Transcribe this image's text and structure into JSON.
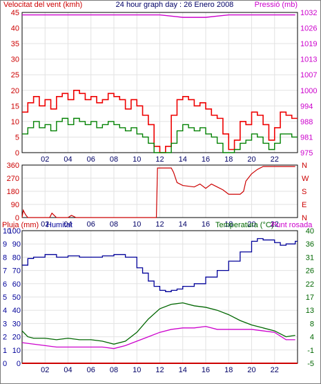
{
  "title": "24 hour graph day : 26 Enero 2008",
  "colors": {
    "wind": "#cc0000",
    "gust": "#ee0000",
    "avgwind": "#008000",
    "dir": "#cc0000",
    "pressure": "#cc00cc",
    "humidity": "#000099",
    "temperature": "#006600",
    "dewpoint": "#cc00cc",
    "rain": "#cc0000",
    "axis": "#000000",
    "grid": "#e2e2e2",
    "left_text": "#cc0000",
    "right_text": "#cc00cc",
    "hum_text": "#000099",
    "bottom_text": "#000066",
    "temp_text": "#006600",
    "dirlabel_text": "#cc0000"
  },
  "x_ticks": [
    "02",
    "04",
    "06",
    "08",
    "10",
    "12",
    "14",
    "16",
    "18",
    "20",
    "22"
  ],
  "chart_data": [
    {
      "type": "line",
      "labels": {
        "left": "Velocitat del vent (kmh)",
        "right": "Pressió (mb)"
      },
      "x_range": [
        0,
        24
      ],
      "left_ticks": [
        "0",
        "5",
        "10",
        "15",
        "20",
        "25",
        "30",
        "35",
        "40",
        "45"
      ],
      "ylim_left": [
        0,
        45
      ],
      "right_ticks": [
        "975",
        "981",
        "988",
        "994",
        "1000",
        "1007",
        "1013",
        "1019",
        "1026",
        "1032"
      ],
      "ylim_right": [
        975,
        1032
      ],
      "series": [
        {
          "key": "gust",
          "axis": "left",
          "x": [
            0,
            0.5,
            1,
            1.5,
            2,
            2.5,
            3,
            3.5,
            4,
            4.5,
            5,
            5.5,
            6,
            6.5,
            7,
            7.5,
            8,
            8.5,
            9,
            9.5,
            10,
            10.5,
            11,
            11.5,
            12,
            12.5,
            13,
            13.5,
            14,
            14.5,
            15,
            15.5,
            16,
            16.5,
            17,
            17.5,
            18,
            18.5,
            19,
            19.5,
            20,
            20.5,
            21,
            21.5,
            22,
            22.5,
            23,
            23.5
          ],
          "values": [
            13,
            16,
            18,
            15,
            17,
            14,
            18,
            19,
            17,
            20,
            19,
            17,
            18,
            16,
            17,
            19,
            18,
            17,
            14,
            17,
            15,
            12,
            9,
            2,
            0,
            2,
            12,
            17,
            18,
            17,
            15,
            16,
            14,
            12,
            11,
            6,
            1,
            4,
            10,
            9,
            13,
            12,
            9,
            4,
            8,
            13,
            12,
            11
          ]
        },
        {
          "key": "avgwind",
          "axis": "left",
          "x": [
            0,
            0.5,
            1,
            1.5,
            2,
            2.5,
            3,
            3.5,
            4,
            4.5,
            5,
            5.5,
            6,
            6.5,
            7,
            7.5,
            8,
            8.5,
            9,
            9.5,
            10,
            10.5,
            11,
            11.5,
            12,
            12.5,
            13,
            13.5,
            14,
            14.5,
            15,
            15.5,
            16,
            16.5,
            17,
            17.5,
            18,
            18.5,
            19,
            19.5,
            20,
            20.5,
            21,
            21.5,
            22,
            22.5,
            23,
            23.5
          ],
          "values": [
            6,
            8,
            10,
            8,
            9,
            7,
            10,
            11,
            9,
            11,
            10,
            9,
            10,
            8,
            9,
            10,
            9,
            8,
            7,
            8,
            6,
            5,
            3,
            0,
            0,
            0,
            3,
            7,
            9,
            8,
            7,
            8,
            6,
            5,
            3,
            0,
            0,
            1,
            3,
            4,
            6,
            5,
            3,
            1,
            3,
            6,
            6,
            5
          ]
        },
        {
          "key": "pressure",
          "axis": "right",
          "x": [
            0,
            2,
            4,
            6,
            8,
            10,
            11,
            12,
            13,
            14,
            15,
            16,
            17,
            18,
            19,
            20,
            21,
            22,
            23,
            23.8
          ],
          "values": [
            1031,
            1031,
            1031,
            1031,
            1031,
            1031,
            1031,
            1031,
            1030.5,
            1030,
            1030,
            1030,
            1030.5,
            1031,
            1031,
            1031,
            1031,
            1031,
            1031,
            1031
          ]
        }
      ]
    },
    {
      "type": "line",
      "labels": {
        "dir_letters": [
          "N",
          "W",
          "S",
          "E",
          "N"
        ]
      },
      "x_range": [
        0,
        24
      ],
      "left_ticks": [
        "0",
        "90",
        "180",
        "270",
        "360"
      ],
      "ylim": [
        0,
        360
      ],
      "series": [
        {
          "key": "dir",
          "x": [
            0,
            0.1,
            0.3,
            0.5,
            0.8,
            1.5,
            2.4,
            2.6,
            3,
            3.5,
            4,
            4.3,
            4.7,
            5.5,
            8,
            10,
            11,
            11.7,
            11.8,
            12.5,
            13,
            13.2,
            13.5,
            14,
            15,
            15.5,
            16,
            16.5,
            17,
            17.5,
            18,
            19,
            19.3,
            19.5,
            20,
            20.5,
            21,
            22,
            23,
            23.8
          ],
          "values": [
            0,
            50,
            20,
            0,
            0,
            0,
            0,
            30,
            0,
            0,
            0,
            15,
            0,
            0,
            0,
            0,
            0,
            0,
            340,
            340,
            340,
            310,
            240,
            220,
            210,
            230,
            200,
            230,
            210,
            190,
            160,
            160,
            180,
            250,
            300,
            330,
            350,
            350,
            350,
            350
          ]
        }
      ]
    },
    {
      "type": "line",
      "labels": {
        "left": "Pluja (mm)",
        "mid": "Humitat",
        "right": "Temperatura (°C)",
        "right2": "Punt rosada"
      },
      "x_range": [
        0,
        24
      ],
      "left_ticks": [
        "0",
        "1",
        "2",
        "3",
        "4",
        "5",
        "6",
        "7",
        "8",
        "9",
        "10"
      ],
      "ylim_left": [
        0,
        10
      ],
      "humidity_ticks": [
        "0",
        "10",
        "20",
        "30",
        "40",
        "50",
        "60",
        "70",
        "80",
        "90",
        "100"
      ],
      "ylim_humidity": [
        0,
        100
      ],
      "right_ticks": [
        "-5",
        "-1",
        "4",
        "8",
        "13",
        "17",
        "22",
        "26",
        "31",
        "36",
        "40"
      ],
      "ylim_right": [
        -5,
        40
      ],
      "series": [
        {
          "key": "rain",
          "axis": "left",
          "x": [
            0,
            24
          ],
          "values": [
            0,
            0
          ]
        },
        {
          "key": "humidity",
          "axis": "humidity",
          "x": [
            0,
            0.5,
            1,
            2,
            3,
            4,
            5,
            6,
            7,
            8,
            9,
            10,
            10.5,
            11,
            11.5,
            12,
            12.5,
            13,
            13.5,
            14,
            15,
            16,
            17,
            18,
            19,
            20,
            20.5,
            21,
            22,
            22.5,
            23,
            23.8
          ],
          "values": [
            74,
            79,
            80,
            82,
            80,
            81,
            80,
            80,
            81,
            82,
            80,
            72,
            68,
            62,
            58,
            55,
            54,
            55,
            56,
            58,
            60,
            65,
            70,
            77,
            84,
            92,
            94,
            93,
            91,
            89,
            90,
            92
          ]
        },
        {
          "key": "temperature",
          "axis": "right",
          "x": [
            0,
            0.5,
            1,
            2,
            3,
            4,
            5,
            6,
            7,
            8,
            9,
            10,
            11,
            12,
            13,
            14,
            15,
            16,
            17,
            18,
            19,
            20,
            21,
            22,
            23,
            23.8
          ],
          "values": [
            6,
            4,
            3.5,
            3.5,
            3,
            3.5,
            3,
            3,
            2.5,
            1.5,
            2.5,
            5.5,
            10,
            13.5,
            15,
            15.5,
            14.5,
            14,
            13,
            11.5,
            9.5,
            8,
            7,
            6,
            4,
            4.5
          ]
        },
        {
          "key": "dewpoint",
          "axis": "right",
          "x": [
            0,
            1,
            2,
            3,
            4,
            5,
            6,
            7,
            8,
            9,
            10,
            11,
            12,
            13,
            14,
            15,
            16,
            17,
            18,
            19,
            20,
            21,
            22,
            23,
            23.8
          ],
          "values": [
            2,
            1.5,
            1,
            0.5,
            0.5,
            0.5,
            0.5,
            0.5,
            0,
            1,
            2.5,
            4,
            5.5,
            6.5,
            7,
            7,
            7.5,
            6.5,
            6.5,
            6.5,
            6.5,
            6,
            5.5,
            3,
            3
          ]
        }
      ]
    }
  ]
}
